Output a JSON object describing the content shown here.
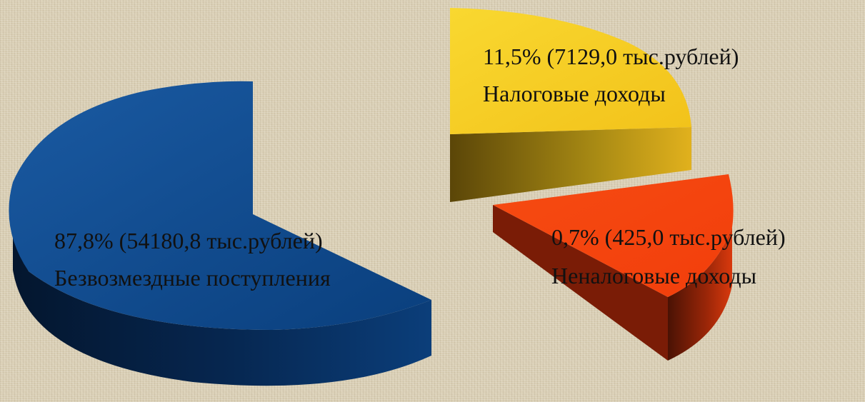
{
  "chart_data": {
    "type": "pie",
    "three_d": true,
    "exploded": true,
    "slices": [
      {
        "name": "Безвозмездные поступления",
        "percent_text": "87,8%",
        "amount_text": "(54180,8 тыс.рублей)",
        "value": 54180.8,
        "percent": 87.8,
        "color": "#083c7a"
      },
      {
        "name": "Налоговые доходы",
        "percent_text": "11,5%",
        "amount_text": "(7129,0 тыс.рублей)",
        "value": 7129.0,
        "percent": 11.5,
        "color": "#f4cc1e"
      },
      {
        "name": "Неналоговые доходы",
        "percent_text": "0,7%",
        "amount_text": "(425,0 тыс.рублей)",
        "value": 425.0,
        "percent": 0.7,
        "color": "#f4420e"
      }
    ]
  }
}
